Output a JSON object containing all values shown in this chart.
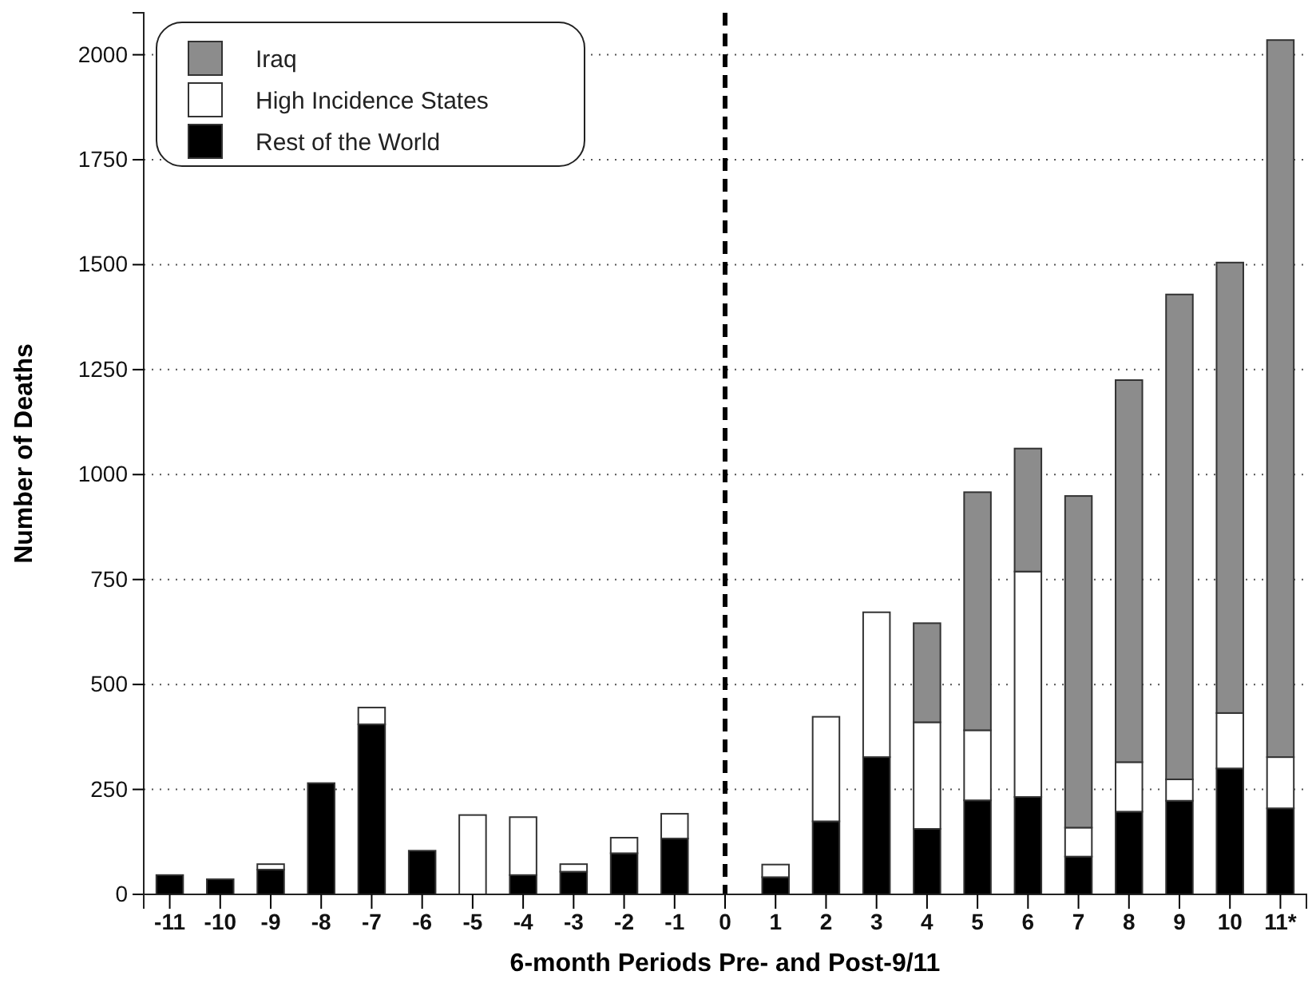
{
  "chart_data": {
    "type": "bar",
    "stacked": true,
    "xlabel": "6-month Periods Pre- and Post-9/11",
    "ylabel": "Number of Deaths",
    "categories": [
      "-11",
      "-10",
      "-9",
      "-8",
      "-7",
      "-6",
      "-5",
      "-4",
      "-3",
      "-2",
      "-1",
      "0",
      "1",
      "2",
      "3",
      "4",
      "5",
      "6",
      "7",
      "8",
      "9",
      "10",
      "11*"
    ],
    "series": [
      {
        "name": "Rest of the World",
        "color": "#000000",
        "values": [
          46,
          36,
          59,
          265,
          405,
          104,
          0,
          46,
          54,
          98,
          133,
          0,
          41,
          174,
          327,
          156,
          224,
          232,
          90,
          197,
          223,
          300,
          205
        ]
      },
      {
        "name": "High Incidence States",
        "color": "#ffffff",
        "values": [
          0,
          0,
          13,
          0,
          40,
          0,
          189,
          138,
          18,
          37,
          59,
          0,
          30,
          249,
          345,
          254,
          167,
          537,
          69,
          118,
          51,
          132,
          122
        ]
      },
      {
        "name": "Iraq",
        "color": "#8c8c8c",
        "values": [
          0,
          0,
          0,
          0,
          0,
          0,
          0,
          0,
          0,
          0,
          0,
          0,
          0,
          0,
          0,
          236,
          567,
          293,
          790,
          910,
          1155,
          1073,
          1708
        ]
      }
    ],
    "ylim": [
      0,
      2100
    ],
    "yticks": [
      0,
      250,
      500,
      750,
      1000,
      1250,
      1500,
      1750,
      2000
    ],
    "grid": "y",
    "legend": "top left",
    "ref_lines": [
      {
        "axis": "x",
        "value": "0",
        "line_style": "dashed",
        "color": "#000000"
      }
    ]
  }
}
